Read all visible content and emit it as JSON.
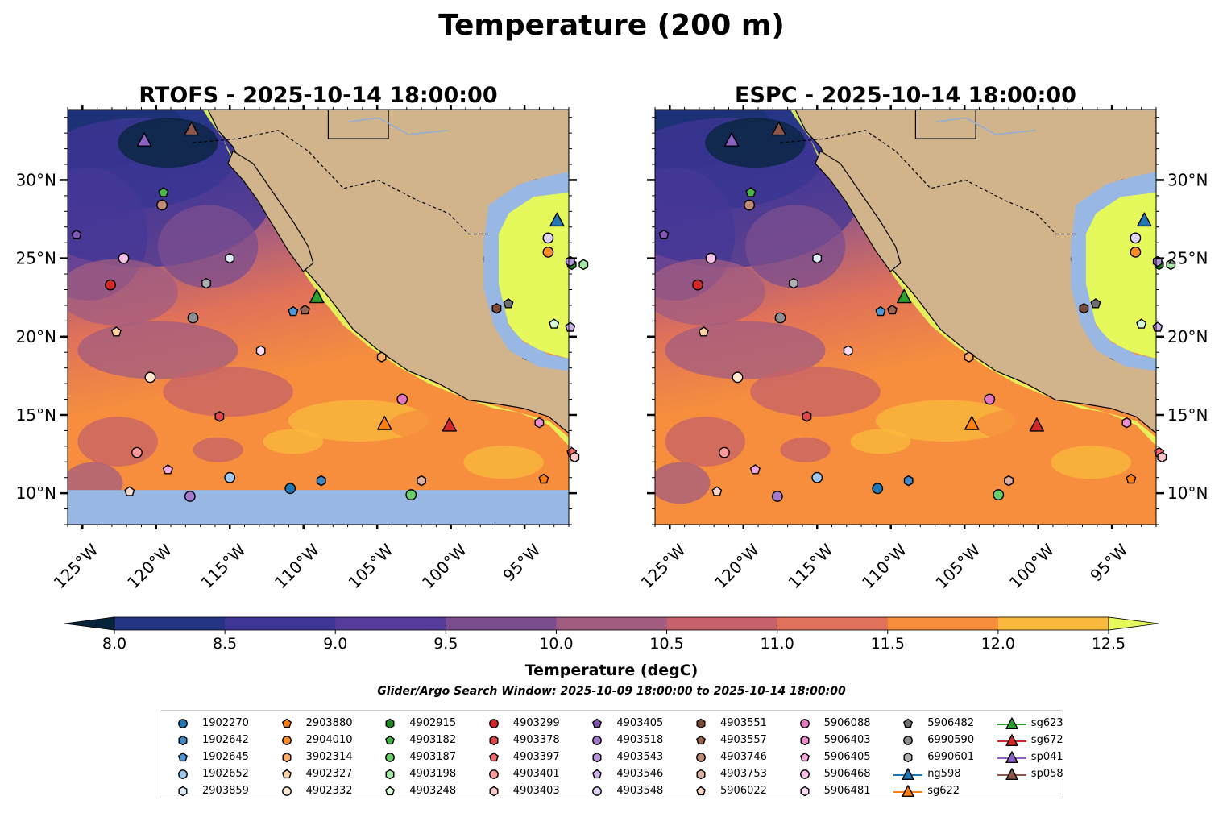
{
  "figure": {
    "suptitle": "Temperature (200 m)",
    "search_window": "Glider/Argo Search Window: 2025-10-09 18:00:00 to 2025-10-14 18:00:00"
  },
  "chart_data": {
    "type": "heatmap",
    "extent": {
      "lon": [
        -126,
        -92
      ],
      "lat": [
        8,
        34.5
      ]
    },
    "panels": [
      {
        "key": "rtofs",
        "title": "RTOFS - 2025-10-14 18:00:00",
        "masked_south_of_lat": 10.2
      },
      {
        "key": "espc",
        "title": "ESPC - 2025-10-14 18:00:00",
        "masked_south_of_lat": null
      }
    ],
    "lon_ticks": [
      -125,
      -120,
      -115,
      -110,
      -105,
      -100,
      -95
    ],
    "lon_tick_labels": [
      "125°W",
      "120°W",
      "115°W",
      "110°W",
      "105°W",
      "100°W",
      "95°W"
    ],
    "lat_ticks": [
      10,
      15,
      20,
      25,
      30
    ],
    "lat_tick_labels": [
      "10°N",
      "15°N",
      "20°N",
      "25°N",
      "30°N"
    ],
    "colorbar": {
      "label": "Temperature (degC)",
      "levels": [
        8.0,
        8.5,
        9.0,
        9.5,
        10.0,
        10.5,
        11.0,
        11.5,
        12.0,
        12.5
      ],
      "level_labels": [
        "8.0",
        "8.5",
        "9.0",
        "9.5",
        "10.0",
        "10.5",
        "11.0",
        "11.5",
        "12.0",
        "12.5"
      ],
      "colors": [
        "#062439",
        "#233584",
        "#3f3596",
        "#553b9b",
        "#7b4d8f",
        "#a15c80",
        "#c5626a",
        "#e0715a",
        "#f68e3e",
        "#f9b93c",
        "#e6f95c"
      ]
    },
    "colors": {
      "land": "#d2b48c",
      "shelf": "#98b7e2",
      "frame": "#000000"
    },
    "platforms": [
      {
        "id": "1902270",
        "marker": "circle",
        "color": "#1f77b4",
        "lon": -110.9,
        "lat": 10.3
      },
      {
        "id": "1902642",
        "marker": "hexagon",
        "color": "#3f88c5",
        "lon": -108.8,
        "lat": 10.8
      },
      {
        "id": "1902645",
        "marker": "pentagon",
        "color": "#4c97d8",
        "lon": -110.7,
        "lat": 21.6
      },
      {
        "id": "1902652",
        "marker": "circle",
        "color": "#9ec8ee",
        "lon": -115.0,
        "lat": 11.0
      },
      {
        "id": "2903859",
        "marker": "hexagon",
        "color": "#dde9f6",
        "lon": -115.0,
        "lat": 25.0
      },
      {
        "id": "2903880",
        "marker": "pentagon",
        "color": "#ff7f0e",
        "lon": -93.7,
        "lat": 10.9
      },
      {
        "id": "2904010",
        "marker": "circle",
        "color": "#ff8c2a",
        "lon": -93.4,
        "lat": 25.4
      },
      {
        "id": "3902314",
        "marker": "hexagon",
        "color": "#ffad6a",
        "lon": -104.7,
        "lat": 18.7
      },
      {
        "id": "4902327",
        "marker": "pentagon",
        "color": "#ffd3a6",
        "lon": -122.7,
        "lat": 20.3
      },
      {
        "id": "4902332",
        "marker": "circle",
        "color": "#ffe8d0",
        "lon": -120.4,
        "lat": 17.4
      },
      {
        "id": "4902915",
        "marker": "hexagon",
        "color": "#1f8b1f",
        "lon": -91.8,
        "lat": 24.6
      },
      {
        "id": "4903182",
        "marker": "pentagon",
        "color": "#49b649",
        "lon": -119.5,
        "lat": 29.2
      },
      {
        "id": "4903187",
        "marker": "circle",
        "color": "#6bcc6b",
        "lon": -102.7,
        "lat": 9.9
      },
      {
        "id": "4903198",
        "marker": "hexagon",
        "color": "#a5e6a5",
        "lon": -91.0,
        "lat": 24.6
      },
      {
        "id": "4903248",
        "marker": "pentagon",
        "color": "#d6f9d6",
        "lon": -93.0,
        "lat": 20.8
      },
      {
        "id": "4903299",
        "marker": "circle",
        "color": "#d62728",
        "lon": -123.1,
        "lat": 23.3
      },
      {
        "id": "4903378",
        "marker": "hexagon",
        "color": "#e04646",
        "lon": -115.7,
        "lat": 14.9
      },
      {
        "id": "4903397",
        "marker": "pentagon",
        "color": "#f06a6a",
        "lon": -91.8,
        "lat": 12.6
      },
      {
        "id": "4903401",
        "marker": "circle",
        "color": "#ff9b9b",
        "lon": -121.3,
        "lat": 12.6
      },
      {
        "id": "4903403",
        "marker": "hexagon",
        "color": "#ffc8c8",
        "lon": -91.6,
        "lat": 12.3
      },
      {
        "id": "4903405",
        "marker": "pentagon",
        "color": "#8456b6",
        "lon": -125.4,
        "lat": 26.5
      },
      {
        "id": "4903518",
        "marker": "circle",
        "color": "#a27bcf",
        "lon": -117.7,
        "lat": 9.8
      },
      {
        "id": "4903543",
        "marker": "hexagon",
        "color": "#b795dd",
        "lon": -91.9,
        "lat": 24.8
      },
      {
        "id": "4903546",
        "marker": "pentagon",
        "color": "#cdb3ec",
        "lon": -91.9,
        "lat": 20.6
      },
      {
        "id": "4903548",
        "marker": "circle",
        "color": "#e2d3f6",
        "lon": -93.4,
        "lat": 26.3
      },
      {
        "id": "4903551",
        "marker": "hexagon",
        "color": "#7a4a3c",
        "lon": -96.9,
        "lat": 21.8
      },
      {
        "id": "4903557",
        "marker": "pentagon",
        "color": "#9b6453",
        "lon": -109.9,
        "lat": 21.7
      },
      {
        "id": "4903746",
        "marker": "circle",
        "color": "#c08a78",
        "lon": -119.6,
        "lat": 28.4
      },
      {
        "id": "4903753",
        "marker": "hexagon",
        "color": "#dcb0a2",
        "lon": -102.0,
        "lat": 10.8
      },
      {
        "id": "5906022",
        "marker": "pentagon",
        "color": "#f5d8c8",
        "lon": -121.8,
        "lat": 10.1
      },
      {
        "id": "5906088",
        "marker": "circle",
        "color": "#e377c2",
        "lon": -103.3,
        "lat": 16.0
      },
      {
        "id": "5906403",
        "marker": "hexagon",
        "color": "#eb8fd0",
        "lon": -94.0,
        "lat": 14.5
      },
      {
        "id": "5906405",
        "marker": "pentagon",
        "color": "#f3a9dd",
        "lon": -119.2,
        "lat": 11.5
      },
      {
        "id": "5906468",
        "marker": "circle",
        "color": "#f8c2e8",
        "lon": -122.2,
        "lat": 25.0
      },
      {
        "id": "5906481",
        "marker": "hexagon",
        "color": "#fcdcf2",
        "lon": -112.9,
        "lat": 19.1
      },
      {
        "id": "5906482",
        "marker": "pentagon",
        "color": "#6f6f6f",
        "lon": -96.1,
        "lat": 22.1
      },
      {
        "id": "6990590",
        "marker": "circle",
        "color": "#8f8f8f",
        "lon": -117.5,
        "lat": 21.2
      },
      {
        "id": "6990601",
        "marker": "hexagon",
        "color": "#b0b0b0",
        "lon": -116.6,
        "lat": 23.4
      },
      {
        "id": "ng598",
        "marker": "triangle",
        "color": "#1f77b4",
        "lon": -92.8,
        "lat": 27.4
      },
      {
        "id": "sg622",
        "marker": "triangle",
        "color": "#ff7f0e",
        "lon": -104.5,
        "lat": 14.4
      },
      {
        "id": "sg623",
        "marker": "triangle",
        "color": "#2ca02c",
        "lon": -109.1,
        "lat": 22.5
      },
      {
        "id": "sg672",
        "marker": "triangle",
        "color": "#d62728",
        "lon": -100.1,
        "lat": 14.3
      },
      {
        "id": "sp041",
        "marker": "triangle",
        "color": "#8c63c4",
        "lon": -120.8,
        "lat": 32.5
      },
      {
        "id": "sp058",
        "marker": "triangle",
        "color": "#8c564b",
        "lon": -117.6,
        "lat": 33.2
      }
    ]
  },
  "legend": {
    "items": [
      {
        "id": "1902270",
        "marker": "circle",
        "color": "#1f77b4"
      },
      {
        "id": "1902642",
        "marker": "hexagon",
        "color": "#3f88c5"
      },
      {
        "id": "1902645",
        "marker": "pentagon",
        "color": "#4c97d8"
      },
      {
        "id": "1902652",
        "marker": "circle",
        "color": "#9ec8ee"
      },
      {
        "id": "2903859",
        "marker": "hexagon",
        "color": "#dde9f6"
      },
      {
        "id": "2903880",
        "marker": "pentagon",
        "color": "#ff7f0e"
      },
      {
        "id": "2904010",
        "marker": "circle",
        "color": "#ff8c2a"
      },
      {
        "id": "3902314",
        "marker": "hexagon",
        "color": "#ffad6a"
      },
      {
        "id": "4902327",
        "marker": "pentagon",
        "color": "#ffd3a6"
      },
      {
        "id": "4902332",
        "marker": "circle",
        "color": "#ffe8d0"
      },
      {
        "id": "4902915",
        "marker": "hexagon",
        "color": "#1f8b1f"
      },
      {
        "id": "4903182",
        "marker": "pentagon",
        "color": "#49b649"
      },
      {
        "id": "4903187",
        "marker": "circle",
        "color": "#6bcc6b"
      },
      {
        "id": "4903198",
        "marker": "hexagon",
        "color": "#a5e6a5"
      },
      {
        "id": "4903248",
        "marker": "pentagon",
        "color": "#d6f9d6"
      },
      {
        "id": "4903299",
        "marker": "circle",
        "color": "#d62728"
      },
      {
        "id": "4903378",
        "marker": "hexagon",
        "color": "#e04646"
      },
      {
        "id": "4903397",
        "marker": "pentagon",
        "color": "#f06a6a"
      },
      {
        "id": "4903401",
        "marker": "circle",
        "color": "#ff9b9b"
      },
      {
        "id": "4903403",
        "marker": "hexagon",
        "color": "#ffc8c8"
      },
      {
        "id": "4903405",
        "marker": "pentagon",
        "color": "#8456b6"
      },
      {
        "id": "4903518",
        "marker": "circle",
        "color": "#a27bcf"
      },
      {
        "id": "4903543",
        "marker": "hexagon",
        "color": "#b795dd"
      },
      {
        "id": "4903546",
        "marker": "pentagon",
        "color": "#cdb3ec"
      },
      {
        "id": "4903548",
        "marker": "circle",
        "color": "#e2d3f6"
      },
      {
        "id": "4903551",
        "marker": "hexagon",
        "color": "#7a4a3c"
      },
      {
        "id": "4903557",
        "marker": "pentagon",
        "color": "#9b6453"
      },
      {
        "id": "4903746",
        "marker": "circle",
        "color": "#c08a78"
      },
      {
        "id": "4903753",
        "marker": "hexagon",
        "color": "#dcb0a2"
      },
      {
        "id": "5906022",
        "marker": "pentagon",
        "color": "#f5d8c8"
      },
      {
        "id": "5906088",
        "marker": "circle",
        "color": "#e377c2"
      },
      {
        "id": "5906403",
        "marker": "hexagon",
        "color": "#eb8fd0"
      },
      {
        "id": "5906405",
        "marker": "pentagon",
        "color": "#f3a9dd"
      },
      {
        "id": "5906468",
        "marker": "circle",
        "color": "#f8c2e8"
      },
      {
        "id": "5906481",
        "marker": "hexagon",
        "color": "#fcdcf2"
      },
      {
        "id": "5906482",
        "marker": "pentagon",
        "color": "#6f6f6f"
      },
      {
        "id": "6990590",
        "marker": "circle",
        "color": "#8f8f8f"
      },
      {
        "id": "6990601",
        "marker": "hexagon",
        "color": "#b0b0b0"
      },
      {
        "id": "ng598",
        "marker": "triangle-line",
        "color": "#1f77b4"
      },
      {
        "id": "sg622",
        "marker": "triangle-line",
        "color": "#ff7f0e"
      },
      {
        "id": "sg623",
        "marker": "triangle-line",
        "color": "#2ca02c"
      },
      {
        "id": "sg672",
        "marker": "triangle-line",
        "color": "#d62728"
      },
      {
        "id": "sp041",
        "marker": "triangle-line",
        "color": "#8c63c4"
      },
      {
        "id": "sp058",
        "marker": "triangle-line",
        "color": "#8c564b"
      }
    ]
  }
}
